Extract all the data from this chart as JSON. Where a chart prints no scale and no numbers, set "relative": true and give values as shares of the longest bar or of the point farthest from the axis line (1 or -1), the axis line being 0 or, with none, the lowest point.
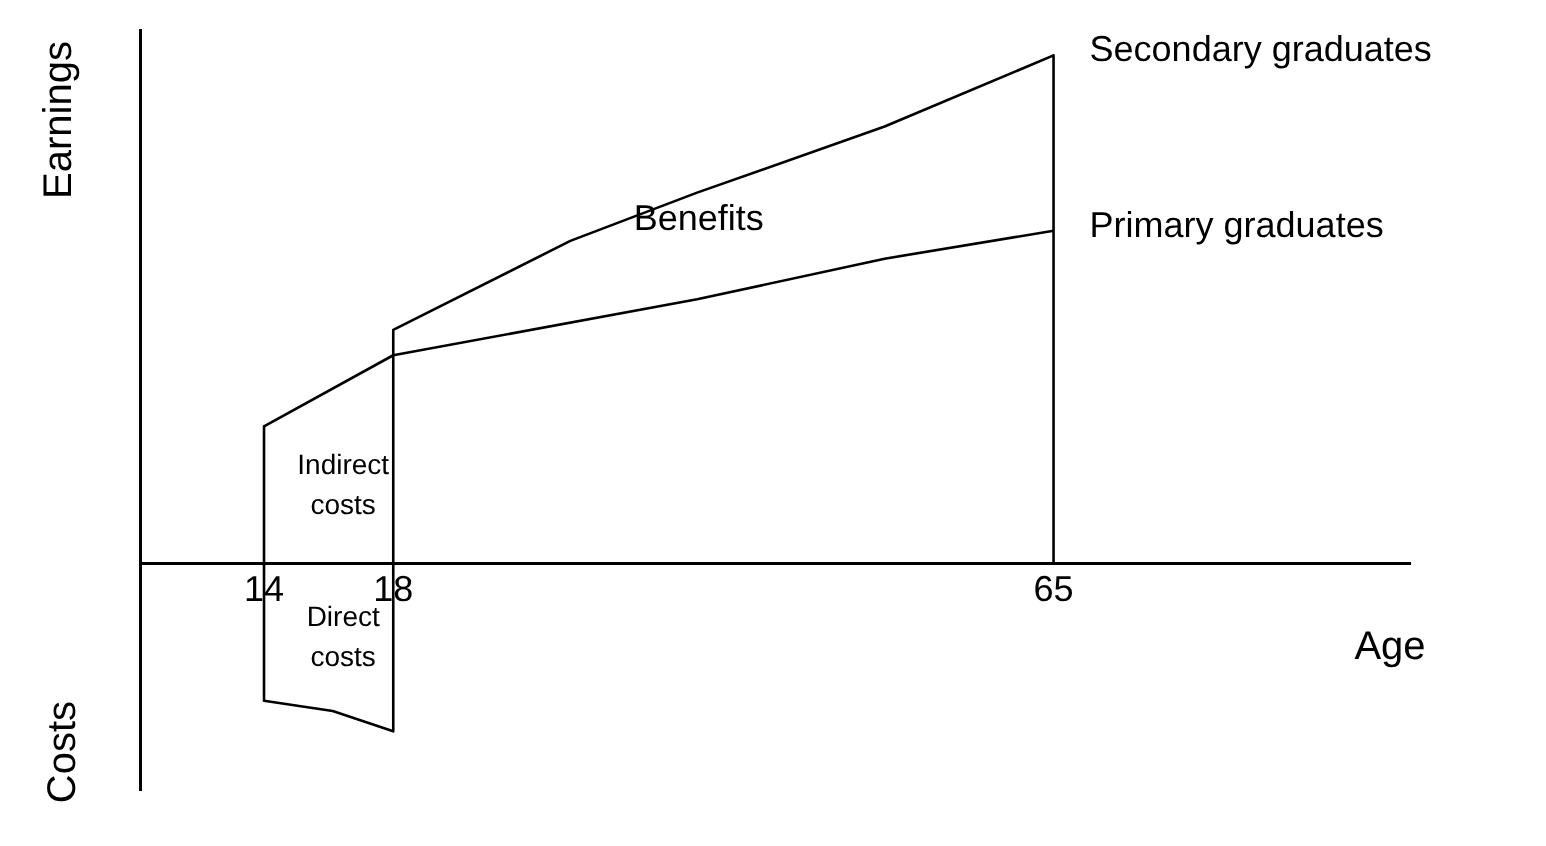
{
  "chart_data": {
    "type": "line",
    "relative": true,
    "xlabel": "Age",
    "ylabel": "Earnings",
    "x": [
      14,
      18,
      32.5,
      46.8,
      65
    ],
    "series": [
      {
        "name": "Primary graduates",
        "color": "#000000",
        "values": [
          0.27,
          0.41,
          0.52,
          0.6,
          0.655
        ]
      },
      {
        "name": "Secondary graduates",
        "color": "#000000",
        "x": [
          14,
          14,
          16,
          18,
          18,
          25.4,
          32.5,
          46.8,
          65,
          65
        ],
        "values": [
          0.27,
          -0.27,
          -0.29,
          -0.33,
          0.46,
          0.635,
          0.73,
          0.86,
          1,
          0
        ]
      }
    ],
    "xlim": [
      11,
      130
    ],
    "xticks": [
      14,
      18,
      65
    ],
    "log": "x",
    "grid": false,
    "legend": false,
    "marker": "none",
    "line_style": "solid",
    "tick_labels": "x",
    "annotations": [
      "Benefits",
      "Indirect costs",
      "Direct costs",
      "Costs"
    ]
  }
}
